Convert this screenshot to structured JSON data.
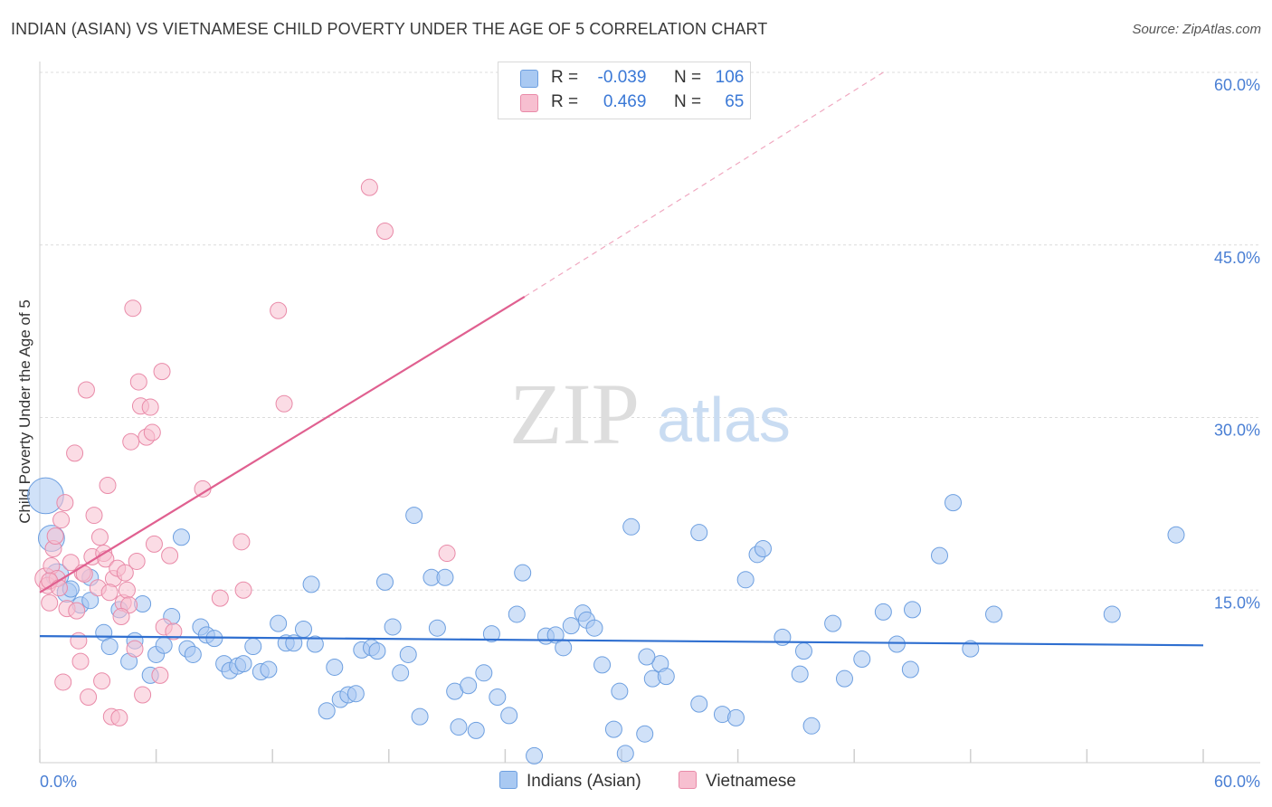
{
  "title": "INDIAN (ASIAN) VS VIETNAMESE CHILD POVERTY UNDER THE AGE OF 5 CORRELATION CHART",
  "source": "Source: ZipAtlas.com",
  "watermark": {
    "zip": "ZIP",
    "atlas": "atlas"
  },
  "legend": {
    "rows": [
      {
        "r_label": "R =",
        "r_value": "-0.039",
        "n_label": "N =",
        "n_value": "106",
        "color": "#a9c9f2"
      },
      {
        "r_label": "R =",
        "r_value": "0.469",
        "n_label": "N =",
        "n_value": "65",
        "color": "#f7bfd0"
      }
    ]
  },
  "bottom_legend": [
    {
      "label": "Indians (Asian)",
      "color": "#a9c9f2"
    },
    {
      "label": "Vietnamese",
      "color": "#f7bfd0"
    }
  ],
  "chart_data": {
    "type": "scatter",
    "title": "INDIAN (ASIAN) VS VIETNAMESE CHILD POVERTY UNDER THE AGE OF 5 CORRELATION CHART",
    "xlabel": "",
    "ylabel": "Child Poverty Under the Age of 5",
    "xlim": [
      0,
      60
    ],
    "ylim": [
      0,
      60
    ],
    "x_tick_labels": [
      "0.0%",
      "60.0%"
    ],
    "y_tick_labels": [
      {
        "value": 15,
        "label": "15.0%"
      },
      {
        "value": 30,
        "label": "30.0%"
      },
      {
        "value": 45,
        "label": "45.0%"
      },
      {
        "value": 60,
        "label": "60.0%"
      }
    ],
    "grid": true,
    "legend_position": "top-center",
    "series": [
      {
        "name": "Indians (Asian)",
        "color": "#a9c9f2",
        "stroke": "#6d9fe0",
        "trend": {
          "x": [
            0,
            60
          ],
          "y": [
            11.0,
            10.2
          ],
          "color": "#2f6fd0"
        },
        "points": [
          [
            0.3,
            23.2,
            2.2
          ],
          [
            0.6,
            19.5,
            1.6
          ],
          [
            0.9,
            16.3,
            1.4
          ],
          [
            1.4,
            14.8,
            1.2
          ],
          [
            1.6,
            15.1,
            1
          ],
          [
            2.1,
            13.7,
            1
          ],
          [
            2.6,
            14.1,
            1
          ],
          [
            2.6,
            16.1,
            1
          ],
          [
            3.3,
            11.3,
            1
          ],
          [
            3.6,
            10.1,
            1
          ],
          [
            4.1,
            13.3,
            1
          ],
          [
            4.6,
            8.8,
            1
          ],
          [
            4.9,
            10.6,
            1
          ],
          [
            5.3,
            13.8,
            1
          ],
          [
            5.7,
            7.6,
            1
          ],
          [
            6.0,
            9.4,
            1
          ],
          [
            6.4,
            10.2,
            1
          ],
          [
            6.8,
            12.7,
            1
          ],
          [
            7.3,
            19.6,
            1
          ],
          [
            7.6,
            9.9,
            1
          ],
          [
            7.9,
            9.4,
            1
          ],
          [
            8.3,
            11.8,
            1
          ],
          [
            8.6,
            11.1,
            1
          ],
          [
            9.0,
            10.8,
            1
          ],
          [
            9.5,
            8.6,
            1
          ],
          [
            9.8,
            8.0,
            1
          ],
          [
            10.2,
            8.4,
            1
          ],
          [
            10.5,
            8.6,
            1
          ],
          [
            11.0,
            10.1,
            1
          ],
          [
            11.4,
            7.9,
            1
          ],
          [
            11.8,
            8.1,
            1
          ],
          [
            12.3,
            12.1,
            1
          ],
          [
            12.7,
            10.4,
            1
          ],
          [
            13.1,
            10.4,
            1
          ],
          [
            13.6,
            11.6,
            1
          ],
          [
            14.0,
            15.5,
            1
          ],
          [
            14.2,
            10.3,
            1
          ],
          [
            14.8,
            4.5,
            1
          ],
          [
            15.2,
            8.3,
            1
          ],
          [
            15.5,
            5.5,
            1
          ],
          [
            15.9,
            5.9,
            1
          ],
          [
            16.3,
            6.0,
            1
          ],
          [
            16.6,
            9.8,
            1
          ],
          [
            17.1,
            10.0,
            1
          ],
          [
            17.4,
            9.7,
            1
          ],
          [
            17.8,
            15.7,
            1
          ],
          [
            18.2,
            11.8,
            1
          ],
          [
            18.6,
            7.8,
            1
          ],
          [
            19.0,
            9.4,
            1
          ],
          [
            19.3,
            21.5,
            1
          ],
          [
            19.6,
            4.0,
            1
          ],
          [
            20.2,
            16.1,
            1
          ],
          [
            20.5,
            11.7,
            1
          ],
          [
            20.9,
            16.1,
            1
          ],
          [
            21.4,
            6.2,
            1
          ],
          [
            21.6,
            3.1,
            1
          ],
          [
            22.1,
            6.7,
            1
          ],
          [
            22.5,
            2.8,
            1
          ],
          [
            22.9,
            7.8,
            1
          ],
          [
            23.3,
            11.2,
            1
          ],
          [
            23.6,
            5.7,
            1
          ],
          [
            24.2,
            4.1,
            1
          ],
          [
            24.6,
            12.9,
            1
          ],
          [
            24.9,
            16.5,
            1
          ],
          [
            25.5,
            0.6,
            1
          ],
          [
            26.1,
            11.0,
            1
          ],
          [
            26.6,
            11.1,
            1
          ],
          [
            27.0,
            10.0,
            1
          ],
          [
            27.4,
            11.9,
            1
          ],
          [
            28.0,
            13.0,
            1
          ],
          [
            28.2,
            12.4,
            1
          ],
          [
            28.6,
            11.7,
            1
          ],
          [
            29.0,
            8.5,
            1
          ],
          [
            29.6,
            2.9,
            1
          ],
          [
            29.9,
            6.2,
            1
          ],
          [
            30.2,
            0.8,
            1
          ],
          [
            30.5,
            20.5,
            1
          ],
          [
            31.2,
            2.5,
            1
          ],
          [
            31.6,
            7.3,
            1
          ],
          [
            32.0,
            8.6,
            1
          ],
          [
            32.3,
            7.5,
            1
          ],
          [
            34.0,
            5.1,
            1
          ],
          [
            34.0,
            20.0,
            1
          ],
          [
            35.2,
            4.2,
            1
          ],
          [
            35.9,
            3.9,
            1
          ],
          [
            36.4,
            15.9,
            1
          ],
          [
            37.0,
            18.1,
            1
          ],
          [
            37.3,
            18.6,
            1
          ],
          [
            38.3,
            10.9,
            1
          ],
          [
            39.2,
            7.7,
            1
          ],
          [
            39.4,
            9.7,
            1
          ],
          [
            39.8,
            3.2,
            1
          ],
          [
            40.9,
            12.1,
            1
          ],
          [
            41.5,
            7.3,
            1
          ],
          [
            42.4,
            9.0,
            1
          ],
          [
            43.5,
            13.1,
            1
          ],
          [
            44.2,
            10.3,
            1
          ],
          [
            44.9,
            8.1,
            1
          ],
          [
            45.0,
            13.3,
            1
          ],
          [
            46.4,
            18.0,
            1
          ],
          [
            47.1,
            22.6,
            1
          ],
          [
            48.0,
            9.9,
            1
          ],
          [
            49.2,
            12.9,
            1
          ],
          [
            55.3,
            12.9,
            1
          ],
          [
            58.6,
            19.8,
            1
          ],
          [
            31.3,
            9.2,
            1
          ]
        ]
      },
      {
        "name": "Vietnamese",
        "color": "#f7bfd0",
        "stroke": "#e98aa8",
        "trend": {
          "x": [
            0,
            25
          ],
          "y": [
            14.8,
            40.5
          ],
          "dashed_x": [
            25,
            43.5
          ],
          "dashed_y": [
            40.5,
            60
          ],
          "color": "#e06090"
        },
        "points": [
          [
            0.3,
            16.0,
            1.3
          ],
          [
            0.4,
            15.4,
            1
          ],
          [
            0.5,
            13.9,
            1
          ],
          [
            0.6,
            17.1,
            1
          ],
          [
            0.7,
            18.6,
            1
          ],
          [
            0.8,
            19.7,
            1
          ],
          [
            0.9,
            16.0,
            1
          ],
          [
            1.1,
            21.1,
            1
          ],
          [
            1.2,
            7.0,
            1
          ],
          [
            1.3,
            22.6,
            1
          ],
          [
            1.4,
            13.4,
            1
          ],
          [
            1.6,
            17.4,
            1
          ],
          [
            1.8,
            26.9,
            1
          ],
          [
            1.9,
            13.2,
            1
          ],
          [
            2.0,
            10.6,
            1
          ],
          [
            2.1,
            8.8,
            1
          ],
          [
            2.2,
            16.5,
            1
          ],
          [
            2.4,
            32.4,
            1
          ],
          [
            2.5,
            5.7,
            1
          ],
          [
            2.7,
            17.9,
            1
          ],
          [
            2.8,
            21.5,
            1
          ],
          [
            3.0,
            15.2,
            1
          ],
          [
            3.2,
            7.1,
            1
          ],
          [
            3.3,
            18.2,
            1
          ],
          [
            3.4,
            17.7,
            1
          ],
          [
            3.5,
            24.1,
            1
          ],
          [
            3.7,
            4.0,
            1
          ],
          [
            3.8,
            16.0,
            1
          ],
          [
            4.0,
            16.9,
            1
          ],
          [
            4.1,
            3.9,
            1
          ],
          [
            4.3,
            13.9,
            1
          ],
          [
            4.4,
            16.5,
            1
          ],
          [
            4.5,
            15.0,
            1
          ],
          [
            4.6,
            13.7,
            1
          ],
          [
            4.7,
            27.9,
            1
          ],
          [
            4.8,
            39.5,
            1
          ],
          [
            4.9,
            9.9,
            1
          ],
          [
            5.1,
            33.1,
            1
          ],
          [
            5.2,
            31.0,
            1
          ],
          [
            5.3,
            5.9,
            1
          ],
          [
            5.5,
            28.3,
            1
          ],
          [
            5.7,
            30.9,
            1
          ],
          [
            5.8,
            28.7,
            1
          ],
          [
            5.9,
            19.0,
            1
          ],
          [
            6.2,
            7.6,
            1
          ],
          [
            6.3,
            34.0,
            1
          ],
          [
            6.4,
            11.8,
            1
          ],
          [
            6.7,
            18.0,
            1
          ],
          [
            6.9,
            11.4,
            1
          ],
          [
            8.4,
            23.8,
            1
          ],
          [
            9.3,
            14.3,
            1
          ],
          [
            10.4,
            19.2,
            1
          ],
          [
            10.5,
            15.0,
            1
          ],
          [
            12.3,
            39.3,
            1
          ],
          [
            12.6,
            31.2,
            1
          ],
          [
            17.0,
            50.0,
            1
          ],
          [
            17.8,
            46.2,
            1
          ],
          [
            21.0,
            18.2,
            1
          ],
          [
            0.5,
            15.8,
            1
          ],
          [
            1.0,
            15.2,
            1
          ],
          [
            2.3,
            16.4,
            1
          ],
          [
            3.1,
            19.6,
            1
          ],
          [
            3.6,
            14.8,
            1
          ],
          [
            4.2,
            12.7,
            1
          ],
          [
            5.0,
            17.5,
            1
          ]
        ]
      }
    ]
  }
}
